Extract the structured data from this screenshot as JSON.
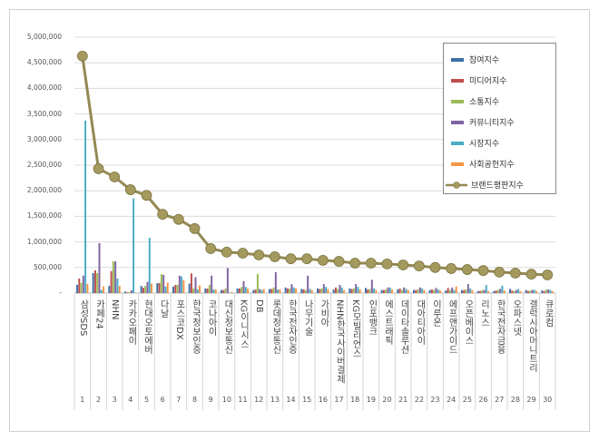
{
  "chart_data": {
    "type": "bar",
    "title": "",
    "xlabel": "",
    "ylabel": "",
    "ylim": [
      0,
      5000000
    ],
    "yticks": [
      "-",
      "500,000",
      "1,000,000",
      "1,500,000",
      "2,000,000",
      "2,500,000",
      "3,000,000",
      "3,500,000",
      "4,000,000",
      "4,500,000",
      "5,000,000"
    ],
    "grid": true,
    "legend_position": "top-right",
    "categories": [
      "삼성SDS",
      "카페24",
      "NHN",
      "카카오페이",
      "현대오토에버",
      "다날",
      "포스코DX",
      "한국정보인증",
      "코나아이",
      "대신정보통신",
      "KG이니시스",
      "DB",
      "롯데정보통신",
      "한국전자인증",
      "나무기술",
      "가비아",
      "NHN한국사이버결제",
      "KG모빌리언스",
      "인포뱅크",
      "에스트래픽",
      "데이타솔루션",
      "대아티아이",
      "이루온",
      "에프앤가이드",
      "오픈베이스",
      "리노스",
      "한국전자금융",
      "오파스넷",
      "갤럭시아머니트리",
      "큐로컴"
    ],
    "ranks": [
      "1",
      "2",
      "3",
      "4",
      "5",
      "6",
      "7",
      "8",
      "9",
      "10",
      "11",
      "12",
      "13",
      "14",
      "15",
      "16",
      "17",
      "18",
      "19",
      "20",
      "21",
      "22",
      "23",
      "24",
      "25",
      "26",
      "27",
      "28",
      "29",
      "30"
    ],
    "series": [
      {
        "name": "참여지수",
        "kind": "bar",
        "color": "#3f6fa8",
        "values": [
          160000,
          390000,
          140000,
          30000,
          140000,
          195000,
          125000,
          185000,
          90000,
          60000,
          90000,
          60000,
          80000,
          110000,
          80000,
          90000,
          70000,
          90000,
          100000,
          60000,
          70000,
          60000,
          60000,
          50000,
          60000,
          40000,
          40000,
          80000,
          60000,
          50000
        ]
      },
      {
        "name": "미디어지수",
        "kind": "bar",
        "color": "#c0504d",
        "values": [
          285000,
          445000,
          430000,
          15000,
          105000,
          195000,
          160000,
          385000,
          90000,
          60000,
          90000,
          70000,
          80000,
          90000,
          70000,
          80000,
          110000,
          80000,
          70000,
          60000,
          90000,
          60000,
          70000,
          100000,
          60000,
          40000,
          50000,
          50000,
          40000,
          40000
        ]
      },
      {
        "name": "소통지수",
        "kind": "bar",
        "color": "#9bbb59",
        "values": [
          200000,
          390000,
          620000,
          20000,
          140000,
          370000,
          160000,
          90000,
          160000,
          90000,
          120000,
          375000,
          110000,
          90000,
          60000,
          90000,
          80000,
          90000,
          80000,
          70000,
          60000,
          70000,
          60000,
          60000,
          70000,
          60000,
          60000,
          40000,
          50000,
          70000
        ]
      },
      {
        "name": "커뮤니티지수",
        "kind": "bar",
        "color": "#8064a2",
        "values": [
          340000,
          975000,
          620000,
          55000,
          220000,
          355000,
          340000,
          310000,
          340000,
          490000,
          235000,
          80000,
          410000,
          175000,
          340000,
          175000,
          160000,
          175000,
          260000,
          110000,
          110000,
          110000,
          100000,
          110000,
          175000,
          60000,
          80000,
          60000,
          60000,
          70000
        ]
      },
      {
        "name": "시장지수",
        "kind": "bar",
        "color": "#4bacc6",
        "values": [
          3370000,
          60000,
          285000,
          1850000,
          1080000,
          130000,
          325000,
          70000,
          70000,
          10000,
          120000,
          60000,
          70000,
          110000,
          80000,
          120000,
          110000,
          120000,
          90000,
          110000,
          80000,
          90000,
          70000,
          60000,
          90000,
          160000,
          145000,
          80000,
          65000,
          60000
        ]
      },
      {
        "name": "사회공헌지수",
        "kind": "bar",
        "color": "#f79646",
        "values": [
          180000,
          130000,
          140000,
          5000,
          185000,
          205000,
          255000,
          150000,
          70000,
          20000,
          90000,
          80000,
          70000,
          90000,
          60000,
          80000,
          60000,
          70000,
          60000,
          70000,
          60000,
          60000,
          50000,
          130000,
          60000,
          40000,
          50000,
          40000,
          40000,
          40000
        ]
      },
      {
        "name": "브랜드평판지수",
        "kind": "line",
        "color": "#938953",
        "values": [
          4630000,
          2430000,
          2270000,
          2020000,
          1910000,
          1540000,
          1440000,
          1260000,
          870000,
          800000,
          780000,
          745000,
          710000,
          670000,
          670000,
          640000,
          620000,
          585000,
          585000,
          570000,
          550000,
          530000,
          500000,
          480000,
          460000,
          440000,
          410000,
          390000,
          370000,
          355000
        ]
      }
    ]
  }
}
